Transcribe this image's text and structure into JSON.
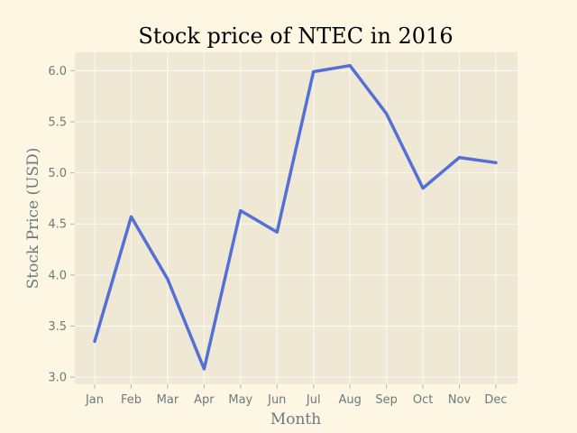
{
  "chart_data": {
    "type": "line",
    "title": "Stock price of NTEC in 2016",
    "xlabel": "Month",
    "ylabel": "Stock Price (USD)",
    "categories": [
      "Jan",
      "Feb",
      "Mar",
      "Apr",
      "May",
      "Jun",
      "Jul",
      "Aug",
      "Sep",
      "Oct",
      "Nov",
      "Dec"
    ],
    "series": [
      {
        "values": [
          3.35,
          4.57,
          3.96,
          3.08,
          4.63,
          4.42,
          5.99,
          6.05,
          5.58,
          4.85,
          5.15,
          5.1
        ]
      }
    ],
    "ylim": [
      2.93,
      6.18
    ],
    "yticks": [
      "3.0",
      "3.5",
      "4.0",
      "4.5",
      "5.0",
      "5.5",
      "6.0"
    ],
    "grid": true,
    "colors": {
      "background": "#fdf6e3",
      "plot_area": "#eee8d5",
      "line": "#5470d6",
      "text": "#6c7a80"
    }
  }
}
